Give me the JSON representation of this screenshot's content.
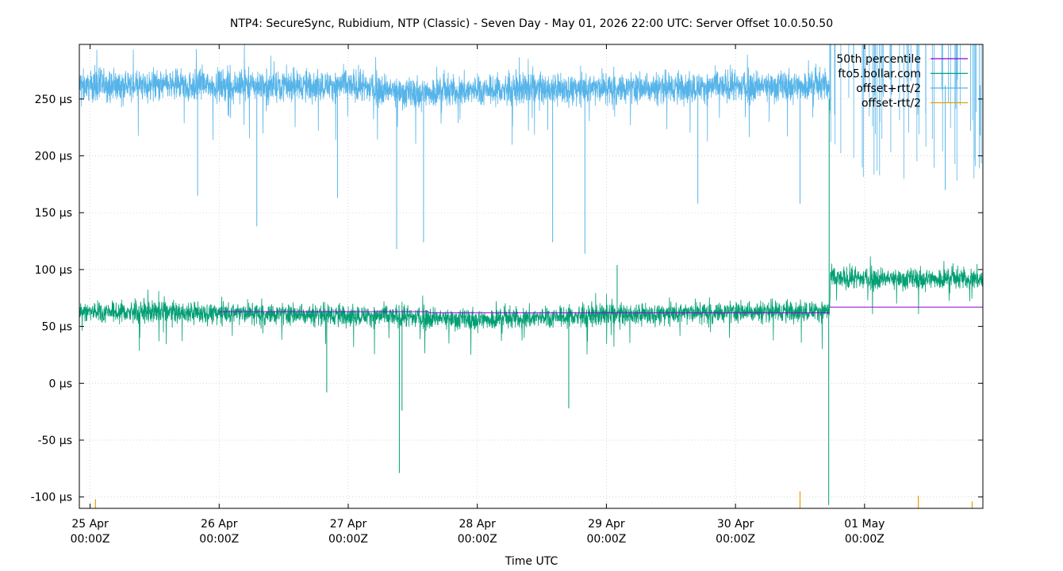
{
  "chart_data": {
    "type": "line",
    "title": "NTP4: SecureSync, Rubidium, NTP (Classic) - Seven Day - May 01, 2026 22:00 UTC: Server Offset 10.0.50.50",
    "xlabel": "Time UTC",
    "ylabel": "",
    "x_range": [
      "2026-04-24T22:00Z",
      "2026-05-01T22:00Z"
    ],
    "ylim": [
      -110,
      298
    ],
    "x_ticks": [
      {
        "at": "2026-04-25T00:00Z",
        "line1": "25 Apr",
        "line2": "00:00Z"
      },
      {
        "at": "2026-04-26T00:00Z",
        "line1": "26 Apr",
        "line2": "00:00Z"
      },
      {
        "at": "2026-04-27T00:00Z",
        "line1": "27 Apr",
        "line2": "00:00Z"
      },
      {
        "at": "2026-04-28T00:00Z",
        "line1": "28 Apr",
        "line2": "00:00Z"
      },
      {
        "at": "2026-04-29T00:00Z",
        "line1": "29 Apr",
        "line2": "00:00Z"
      },
      {
        "at": "2026-04-30T00:00Z",
        "line1": "30 Apr",
        "line2": "00:00Z"
      },
      {
        "at": "2026-05-01T00:00Z",
        "line1": "01 May",
        "line2": "00:00Z"
      }
    ],
    "y_ticks": [
      {
        "value": -100,
        "label": "-100 µs"
      },
      {
        "value": -50,
        "label": "-50 µs"
      },
      {
        "value": 0,
        "label": "0 µs"
      },
      {
        "value": 50,
        "label": "50 µs"
      },
      {
        "value": 100,
        "label": "100 µs"
      },
      {
        "value": 150,
        "label": "150 µs"
      },
      {
        "value": 200,
        "label": "200 µs"
      },
      {
        "value": 250,
        "label": "250 µs"
      }
    ],
    "grid": true,
    "legend_position": "top-right",
    "series": [
      {
        "name": "50th percentile",
        "color": "#9400d3",
        "segments": [
          {
            "x": [
              "2026-04-26T00:00Z",
              "2026-04-27T15:00Z"
            ],
            "y": 63
          },
          {
            "x": [
              "2026-04-27T15:00Z",
              "2026-04-30T17:30Z"
            ],
            "y": 62
          },
          {
            "x": [
              "2026-04-30T17:30Z",
              "2026-05-01T22:00Z"
            ],
            "y": 67
          }
        ]
      },
      {
        "name": "fto5.bollar.com",
        "color": "#009e73",
        "baseline": [
          {
            "x": "2026-04-24T22:00Z",
            "y": 63
          },
          {
            "x": "2026-04-26T00:00Z",
            "y": 62
          },
          {
            "x": "2026-04-27T00:00Z",
            "y": 60
          },
          {
            "x": "2026-04-27T12:00Z",
            "y": 58
          },
          {
            "x": "2026-04-28T00:00Z",
            "y": 56
          },
          {
            "x": "2026-04-29T00:00Z",
            "y": 60
          },
          {
            "x": "2026-04-30T00:00Z",
            "y": 63
          },
          {
            "x": "2026-04-30T17:30Z",
            "y": 64
          },
          {
            "x": "2026-04-30T17:40Z",
            "y": 92
          },
          {
            "x": "2026-05-01T22:00Z",
            "y": 92
          }
        ],
        "spread": 14,
        "spikes": [
          {
            "x": "2026-04-26T20:00Z",
            "y": -8
          },
          {
            "x": "2026-04-27T10:00Z",
            "y": -24
          },
          {
            "x": "2026-04-27T09:30Z",
            "y": -79
          },
          {
            "x": "2026-04-28T17:00Z",
            "y": -22
          },
          {
            "x": "2026-04-29T02:00Z",
            "y": 104
          },
          {
            "x": "2026-04-30T17:20Z",
            "y": -107
          },
          {
            "x": "2026-04-30T17:25Z",
            "y": 250
          }
        ]
      },
      {
        "name": "offset+rtt/2",
        "color": "#56b4e9",
        "baseline": [
          {
            "x": "2026-04-24T22:00Z",
            "y": 262
          },
          {
            "x": "2026-04-27T00:00Z",
            "y": 262
          },
          {
            "x": "2026-04-27T12:00Z",
            "y": 255
          },
          {
            "x": "2026-04-28T00:00Z",
            "y": 258
          },
          {
            "x": "2026-04-30T17:30Z",
            "y": 262
          }
        ],
        "spread": 20,
        "spikes": [
          {
            "x": "2026-04-25T20:00Z",
            "y": 165
          },
          {
            "x": "2026-04-26T07:00Z",
            "y": 138
          },
          {
            "x": "2026-04-26T22:00Z",
            "y": 163
          },
          {
            "x": "2026-04-27T09:00Z",
            "y": 118
          },
          {
            "x": "2026-04-27T14:00Z",
            "y": 124
          },
          {
            "x": "2026-04-28T14:00Z",
            "y": 124
          },
          {
            "x": "2026-04-28T20:00Z",
            "y": 114
          },
          {
            "x": "2026-04-29T17:00Z",
            "y": 158
          },
          {
            "x": "2026-04-30T12:00Z",
            "y": 158
          },
          {
            "x": "2026-05-01T15:00Z",
            "y": 170
          },
          {
            "x": "2026-05-01T21:30Z",
            "y": 218
          }
        ]
      },
      {
        "name": "offset-rtt/2",
        "color": "#e69f00",
        "spikes": [
          {
            "x": "2026-04-25T01:00Z",
            "y": -102
          },
          {
            "x": "2026-04-30T12:00Z",
            "y": -95
          },
          {
            "x": "2026-05-01T10:00Z",
            "y": -99
          },
          {
            "x": "2026-05-01T20:00Z",
            "y": -104
          }
        ]
      }
    ]
  }
}
